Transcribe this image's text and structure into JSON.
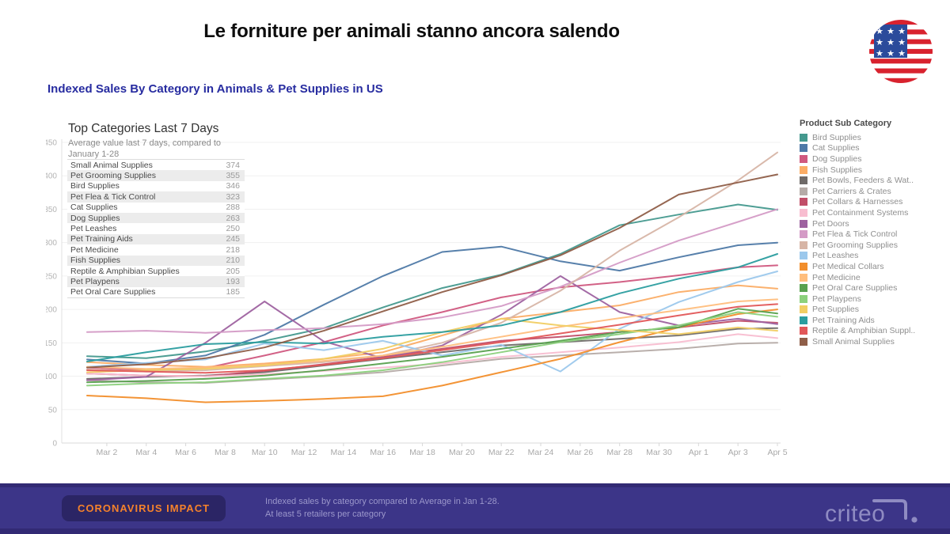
{
  "page": {
    "title": "Le forniture per animali stanno ancora salendo",
    "subtitle": "Indexed Sales By Category in Animals & Pet Supplies in US"
  },
  "panel": {
    "title": "Top Categories Last 7 Days",
    "subtitle_line1": "Average value last 7 days, compared to",
    "subtitle_line2": "January 1-28",
    "table_rows": [
      {
        "label": "Small Animal Supplies",
        "value": "374"
      },
      {
        "label": "Pet Grooming Supplies",
        "value": "355"
      },
      {
        "label": "Bird Supplies",
        "value": "346"
      },
      {
        "label": "Pet Flea & Tick Control",
        "value": "323"
      },
      {
        "label": "Cat Supplies",
        "value": "288"
      },
      {
        "label": "Dog Supplies",
        "value": "263"
      },
      {
        "label": "Pet Leashes",
        "value": "250"
      },
      {
        "label": "Pet Training Aids",
        "value": "245"
      },
      {
        "label": "Pet Medicine",
        "value": "218"
      },
      {
        "label": "Fish Supplies",
        "value": "210"
      },
      {
        "label": "Reptile & Amphibian Supplies",
        "value": "205"
      },
      {
        "label": "Pet Playpens",
        "value": "193"
      },
      {
        "label": "Pet Oral Care Supplies",
        "value": "185"
      }
    ]
  },
  "legend": {
    "title": "Product Sub Category",
    "items": [
      {
        "label": "Bird Supplies",
        "color": "#44998E"
      },
      {
        "label": "Cat Supplies",
        "color": "#4E79A7"
      },
      {
        "label": "Dog Supplies",
        "color": "#D0597F"
      },
      {
        "label": "Fish Supplies",
        "color": "#FBAD66"
      },
      {
        "label": "Pet Bowls, Feeders & Wat..",
        "color": "#6F6A68"
      },
      {
        "label": "Pet Carriers & Crates",
        "color": "#B5ABA7"
      },
      {
        "label": "Pet Collars & Harnesses",
        "color": "#C14E68"
      },
      {
        "label": "Pet Containment Systems",
        "color": "#F8BDD0"
      },
      {
        "label": "Pet Doors",
        "color": "#9E62A0"
      },
      {
        "label": "Pet Flea & Tick Control",
        "color": "#D49BC6"
      },
      {
        "label": "Pet Grooming Supplies",
        "color": "#D7B5A6"
      },
      {
        "label": "Pet Leashes",
        "color": "#9CC8EC"
      },
      {
        "label": "Pet Medical Collars",
        "color": "#F28E2B"
      },
      {
        "label": "Pet Medicine",
        "color": "#FFBE7D"
      },
      {
        "label": "Pet Oral Care Supplies",
        "color": "#59A14F"
      },
      {
        "label": "Pet Playpens",
        "color": "#8CD17D"
      },
      {
        "label": "Pet Supplies",
        "color": "#F1CE63"
      },
      {
        "label": "Pet Training Aids",
        "color": "#2B9D9F"
      },
      {
        "label": "Reptile & Amphibian Suppl..",
        "color": "#E15759"
      },
      {
        "label": "Small Animal Supplies",
        "color": "#8F5E48"
      }
    ]
  },
  "chart_data": {
    "type": "line",
    "title": "Indexed Sales By Category in Animals & Pet Supplies in US",
    "ylim": [
      0,
      450
    ],
    "y_ticks": [
      0,
      50,
      100,
      150,
      200,
      250,
      300,
      350,
      400,
      450
    ],
    "grid": true,
    "legend_position": "right",
    "x_tick_days": [
      1,
      3,
      5,
      7,
      9,
      11,
      13,
      15,
      17,
      19,
      21,
      23,
      25,
      27,
      29,
      31,
      33,
      35
    ],
    "x_tick_labels": [
      "Mar 2",
      "Mar 4",
      "Mar 6",
      "Mar 8",
      "Mar 10",
      "Mar 12",
      "Mar 14",
      "Mar 16",
      "Mar 18",
      "Mar 20",
      "Mar 22",
      "Mar 24",
      "Mar 26",
      "Mar 28",
      "Mar 30",
      "Apr 1",
      "Apr 3",
      "Apr 5"
    ],
    "sample_days": [
      0,
      3,
      6,
      9,
      12,
      15,
      18,
      21,
      24,
      27,
      30,
      33,
      35
    ],
    "series": [
      {
        "name": "Bird Supplies",
        "color": "#44998E",
        "values": [
          130,
          127,
          137,
          153,
          172,
          203,
          232,
          252,
          283,
          326,
          342,
          357,
          349
        ]
      },
      {
        "name": "Cat Supplies",
        "color": "#4E79A7",
        "values": [
          125,
          119,
          131,
          162,
          207,
          250,
          286,
          294,
          272,
          258,
          278,
          296,
          300
        ]
      },
      {
        "name": "Dog Supplies",
        "color": "#D0597F",
        "values": [
          113,
          109,
          112,
          131,
          151,
          176,
          196,
          218,
          233,
          241,
          251,
          263,
          266
        ]
      },
      {
        "name": "Fish Supplies",
        "color": "#FBAD66",
        "values": [
          121,
          117,
          114,
          119,
          126,
          136,
          161,
          186,
          196,
          206,
          226,
          236,
          231
        ]
      },
      {
        "name": "Pet Bowls, Feeders & Waterers",
        "color": "#6F6A68",
        "values": [
          96,
          99,
          101,
          106,
          116,
          126,
          136,
          146,
          151,
          156,
          161,
          171,
          172
        ]
      },
      {
        "name": "Pet Carriers & Crates",
        "color": "#B5ABA7",
        "values": [
          94,
          91,
          90,
          95,
          100,
          106,
          116,
          126,
          131,
          136,
          141,
          149,
          150
        ]
      },
      {
        "name": "Pet Collars & Harnesses",
        "color": "#C14E68",
        "values": [
          104,
          101,
          100,
          108,
          118,
          129,
          141,
          153,
          159,
          166,
          173,
          183,
          180
        ]
      },
      {
        "name": "Pet Containment Systems",
        "color": "#F8BDD0",
        "values": [
          104,
          101,
          100,
          103,
          108,
          113,
          119,
          129,
          136,
          143,
          151,
          163,
          157
        ]
      },
      {
        "name": "Pet Doors",
        "color": "#9E62A0",
        "values": [
          94,
          99,
          150,
          212,
          152,
          127,
          146,
          192,
          250,
          196,
          176,
          186,
          178
        ]
      },
      {
        "name": "Pet Flea & Tick Control",
        "color": "#D49BC6",
        "values": [
          166,
          168,
          165,
          169,
          172,
          178,
          188,
          205,
          234,
          270,
          303,
          331,
          350
        ]
      },
      {
        "name": "Pet Grooming Supplies",
        "color": "#D7B5A6",
        "values": [
          110,
          107,
          109,
          115,
          121,
          131,
          150,
          180,
          228,
          288,
          338,
          393,
          435
        ]
      },
      {
        "name": "Pet Leashes",
        "color": "#9CC8EC",
        "values": [
          114,
          120,
          125,
          149,
          139,
          153,
          131,
          147,
          107,
          171,
          211,
          241,
          257
        ]
      },
      {
        "name": "Pet Medical Collars",
        "color": "#F28E2B",
        "values": [
          71,
          67,
          61,
          63,
          66,
          70,
          86,
          106,
          126,
          151,
          173,
          193,
          200
        ]
      },
      {
        "name": "Pet Medicine",
        "color": "#FFBE7D",
        "values": [
          114,
          111,
          113,
          117,
          123,
          131,
          144,
          159,
          174,
          187,
          199,
          212,
          215
        ]
      },
      {
        "name": "Pet Oral Care Supplies",
        "color": "#59A14F",
        "values": [
          91,
          93,
          96,
          101,
          109,
          119,
          129,
          141,
          153,
          166,
          173,
          201,
          194
        ]
      },
      {
        "name": "Pet Playpens",
        "color": "#8CD17D",
        "values": [
          86,
          89,
          91,
          96,
          101,
          109,
          121,
          136,
          151,
          163,
          176,
          196,
          189
        ]
      },
      {
        "name": "Pet Supplies",
        "color": "#F1CE63",
        "values": [
          106,
          109,
          111,
          116,
          126,
          141,
          166,
          186,
          176,
          169,
          163,
          173,
          168
        ]
      },
      {
        "name": "Pet Training Aids",
        "color": "#2B9D9F",
        "values": [
          122,
          136,
          148,
          151,
          149,
          159,
          166,
          176,
          196,
          224,
          246,
          263,
          283
        ]
      },
      {
        "name": "Reptile & Amphibian Supplies",
        "color": "#E15759",
        "values": [
          109,
          107,
          105,
          109,
          117,
          127,
          139,
          151,
          164,
          177,
          191,
          204,
          208
        ]
      },
      {
        "name": "Small Animal Supplies",
        "color": "#8F5E48",
        "values": [
          113,
          118,
          127,
          143,
          168,
          197,
          226,
          251,
          281,
          322,
          372,
          390,
          402
        ]
      }
    ]
  },
  "footer": {
    "badge": "CORONAVIRUS IMPACT",
    "note_line1": "Indexed sales by category compared to Average in Jan 1-28.",
    "note_line2": "At least 5 retailers per category",
    "brand": "criteo"
  }
}
